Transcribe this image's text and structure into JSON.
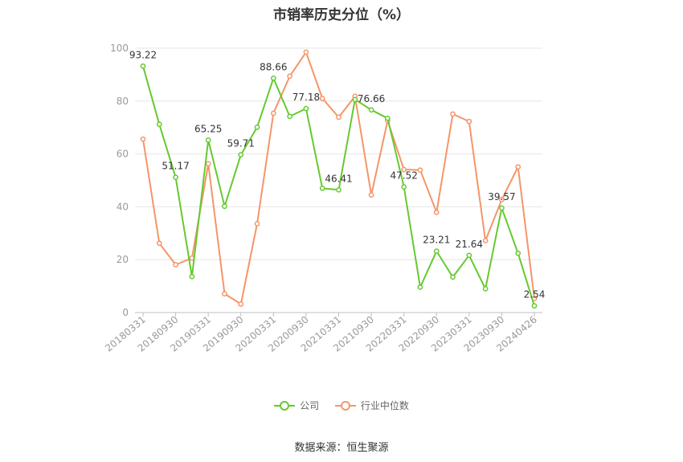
{
  "chart_data": {
    "type": "line",
    "title": "市销率历史分位（%）",
    "source_text": "数据来源：恒生聚源",
    "ylim": [
      0,
      100
    ],
    "y_ticks": [
      0,
      20,
      40,
      60,
      80,
      100
    ],
    "grid": true,
    "legend_position": "bottom",
    "x_tick_labels": [
      "20180331",
      "20180930",
      "20190331",
      "20190930",
      "20200331",
      "20200930",
      "20210331",
      "20210930",
      "20220331",
      "20220930",
      "20230331",
      "20230930",
      "20240426"
    ],
    "x_tick_indices": [
      0,
      2,
      4,
      6,
      8,
      10,
      12,
      14,
      16,
      18,
      20,
      22,
      24
    ],
    "series": [
      {
        "name": "公司",
        "color": "#66c930",
        "values": [
          93.22,
          71.2,
          51.17,
          13.6,
          65.25,
          40.2,
          59.71,
          70.1,
          88.66,
          74.2,
          77.18,
          47.0,
          46.41,
          80.6,
          76.66,
          73.5,
          47.52,
          9.6,
          23.21,
          13.4,
          21.64,
          9.0,
          39.57,
          22.4,
          2.54
        ],
        "labels": {
          "0": "93.22",
          "2": "51.17",
          "4": "65.25",
          "6": "59.71",
          "8": "88.66",
          "10": "77.18",
          "12": "46.41",
          "14": "76.66",
          "16": "47.52",
          "18": "23.21",
          "20": "21.64",
          "22": "39.57",
          "24": "2.54"
        }
      },
      {
        "name": "行业中位数",
        "color": "#f5956a",
        "values": [
          65.6,
          26.2,
          18.1,
          20.6,
          56.3,
          7.1,
          3.2,
          33.6,
          75.4,
          89.4,
          98.5,
          81.0,
          73.9,
          81.8,
          44.5,
          72.6,
          54.1,
          53.9,
          37.9,
          75.1,
          72.3,
          27.2,
          42.7,
          55.1,
          5.3
        ]
      }
    ]
  }
}
